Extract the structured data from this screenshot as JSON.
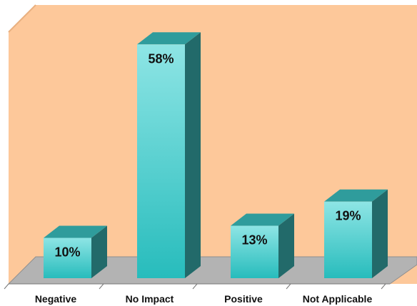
{
  "colors": {
    "wall": "#fdc89a",
    "wall_edge": "#e9b181",
    "floor": "#b3b3b3",
    "floor_edge": "#8f8f8f",
    "bar_front_top": "#8ee5e5",
    "bar_front_bottom": "#27bcbc",
    "bar_top": "#2f9c9c",
    "bar_side": "#226a6a",
    "axis": "#777777"
  },
  "chart_data": {
    "type": "bar",
    "style": "3d",
    "categories": [
      "Negative",
      "No Impact",
      "Positive",
      "Not Applicable"
    ],
    "values": [
      10,
      58,
      13,
      19
    ],
    "value_labels": [
      "10%",
      "58%",
      "13%",
      "19%"
    ],
    "unit": "%",
    "ylim": [
      0,
      60
    ],
    "grid": false,
    "legend": false,
    "title": "",
    "xlabel": "",
    "ylabel": ""
  }
}
